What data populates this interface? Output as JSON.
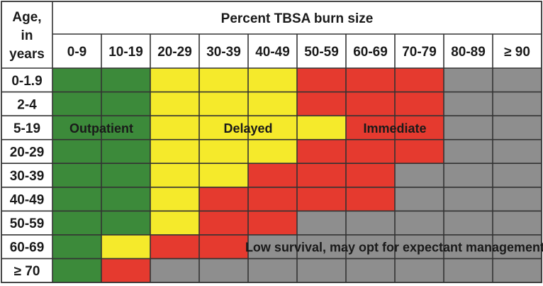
{
  "chart_data": {
    "type": "heatmap",
    "corner_label": [
      "Age,",
      "in",
      "years"
    ],
    "column_group_label": "Percent TBSA burn size",
    "columns": [
      "0-9",
      "10-19",
      "20-29",
      "30-39",
      "40-49",
      "50-59",
      "60-69",
      "70-79",
      "80-89",
      "≥ 90"
    ],
    "rows": [
      "0-1.9",
      "2-4",
      "5-19",
      "20-29",
      "30-39",
      "40-49",
      "50-59",
      "60-69",
      "≥ 70"
    ],
    "categories": {
      "O": {
        "label": "Outpatient",
        "color": "#3c8a3a"
      },
      "D": {
        "label": "Delayed",
        "color": "#f5ea2b"
      },
      "I": {
        "label": "Immediate",
        "color": "#e53a2f"
      },
      "L": {
        "label": "Low survival, may opt for expectant management",
        "color": "#8e8e8e"
      }
    },
    "cells": [
      [
        "O",
        "O",
        "D",
        "D",
        "D",
        "I",
        "I",
        "I",
        "L",
        "L"
      ],
      [
        "O",
        "O",
        "D",
        "D",
        "D",
        "I",
        "I",
        "I",
        "L",
        "L"
      ],
      [
        "O",
        "O",
        "D",
        "D",
        "D",
        "D",
        "I",
        "I",
        "L",
        "L"
      ],
      [
        "O",
        "O",
        "D",
        "D",
        "D",
        "I",
        "I",
        "I",
        "L",
        "L"
      ],
      [
        "O",
        "O",
        "D",
        "D",
        "I",
        "I",
        "I",
        "L",
        "L",
        "L"
      ],
      [
        "O",
        "O",
        "D",
        "I",
        "I",
        "I",
        "I",
        "L",
        "L",
        "L"
      ],
      [
        "O",
        "O",
        "D",
        "I",
        "I",
        "L",
        "L",
        "L",
        "L",
        "L"
      ],
      [
        "O",
        "D",
        "I",
        "I",
        "L",
        "L",
        "L",
        "L",
        "L",
        "L"
      ],
      [
        "O",
        "I",
        "L",
        "L",
        "L",
        "L",
        "L",
        "L",
        "L",
        "L"
      ]
    ],
    "region_labels": [
      {
        "category": "O",
        "row": "5-19",
        "columns": [
          "0-9",
          "10-19"
        ]
      },
      {
        "category": "D",
        "row": "5-19",
        "columns": [
          "20-29",
          "30-39",
          "40-49",
          "50-59"
        ]
      },
      {
        "category": "I",
        "row": "5-19",
        "columns": [
          "60-69",
          "70-79"
        ]
      },
      {
        "category": "L",
        "row": "60-69",
        "columns": [
          "40-49",
          "50-59",
          "60-69",
          "70-79",
          "80-89",
          "≥ 90"
        ]
      }
    ]
  }
}
